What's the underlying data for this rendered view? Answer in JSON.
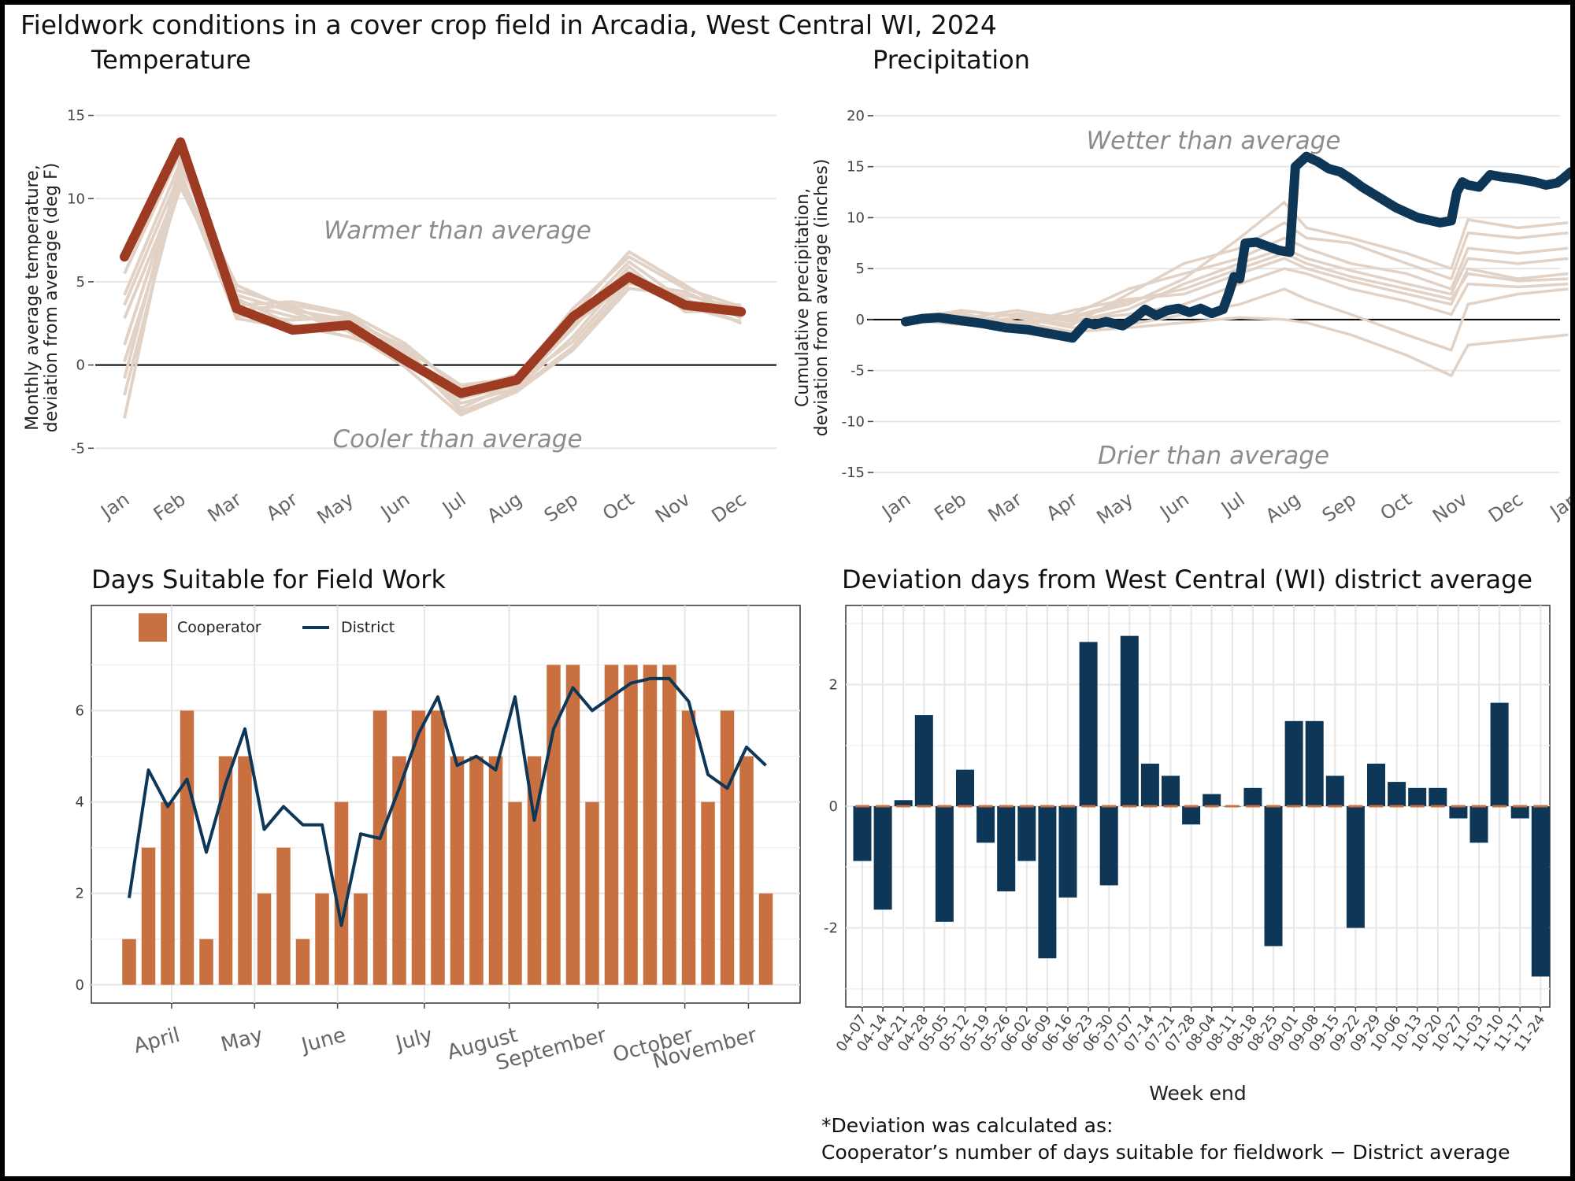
{
  "title": "Fieldwork conditions in a cover crop field in Arcadia, West Central WI, 2024",
  "colors": {
    "temp_line": "#9c3b22",
    "background_lines": "#e2d2c6",
    "precip_line": "#0e3757",
    "cooperator_bar": "#c87040",
    "district_line": "#0e3757",
    "deviation_bar": "#0e3757",
    "deviation_zero_mark": "#c87040"
  },
  "chart_data": [
    {
      "type": "line",
      "title": "Temperature",
      "ylabel": "Monthly average temperature,\ndeviation from average (deg F)",
      "xlabel": "",
      "categories": [
        "Jan",
        "Feb",
        "Mar",
        "Apr",
        "May",
        "Jun",
        "Jul",
        "Aug",
        "Sep",
        "Oct",
        "Nov",
        "Dec"
      ],
      "ylim": [
        -6.5,
        15.5
      ],
      "yticks": [
        -5,
        0,
        5,
        10,
        15
      ],
      "grid": true,
      "annotations": [
        "Warmer than average",
        "Cooler than average"
      ],
      "series": [
        {
          "values": [
            6.5,
            13.4,
            3.4,
            2.1,
            2.4,
            0.3,
            -1.7,
            -0.9,
            2.9,
            5.3,
            3.6,
            3.2
          ]
        }
      ],
      "background_series": [
        {
          "values": [
            5.5,
            12.8,
            3.8,
            2.9,
            2.6,
            0.4,
            -1.9,
            -1.1,
            2.4,
            5.0,
            3.9,
            3.0
          ]
        },
        {
          "values": [
            4.2,
            12.2,
            4.5,
            3.5,
            2.1,
            1.0,
            -1.2,
            -0.8,
            3.4,
            6.5,
            4.6,
            3.5
          ]
        },
        {
          "values": [
            3.6,
            11.6,
            3.0,
            2.7,
            2.9,
            0.9,
            -2.3,
            -1.4,
            1.7,
            5.6,
            3.5,
            2.6
          ]
        },
        {
          "values": [
            2.8,
            11.0,
            4.2,
            3.2,
            2.0,
            -0.1,
            -3.0,
            -1.6,
            0.9,
            4.6,
            4.2,
            3.4
          ]
        },
        {
          "values": [
            1.2,
            11.5,
            3.6,
            3.8,
            3.1,
            1.3,
            -1.5,
            -0.6,
            3.0,
            6.8,
            4.8,
            2.8
          ]
        },
        {
          "values": [
            0.2,
            10.7,
            4.0,
            2.4,
            1.7,
            0.6,
            -2.0,
            -1.2,
            2.2,
            5.9,
            3.2,
            3.3
          ]
        },
        {
          "values": [
            -0.8,
            12.0,
            4.8,
            3.3,
            2.7,
            1.1,
            -2.6,
            -1.0,
            1.4,
            5.2,
            4.0,
            2.5
          ]
        },
        {
          "values": [
            -1.8,
            11.2,
            2.8,
            2.2,
            2.3,
            0.2,
            -1.4,
            -0.7,
            2.7,
            6.2,
            3.8,
            3.6
          ]
        },
        {
          "values": [
            -3.2,
            12.5,
            3.3,
            3.6,
            3.0,
            0.7,
            -2.8,
            -1.5,
            1.1,
            4.9,
            4.4,
            2.9
          ]
        }
      ]
    },
    {
      "type": "line",
      "title": "Precipitation",
      "ylabel": "Cumulative precipitation,\ndeviation from average (inches)",
      "xlabel": "",
      "categories": [
        "Jan",
        "Feb",
        "Mar",
        "Apr",
        "May",
        "Jun",
        "Jul",
        "Aug",
        "Sep",
        "Oct",
        "Nov",
        "Dec",
        "Jan"
      ],
      "ylim": [
        -17,
        21
      ],
      "yticks": [
        -15,
        -10,
        -5,
        0,
        5,
        10,
        15,
        20
      ],
      "grid": true,
      "annotations": [
        "Wetter than average",
        "Drier than average"
      ],
      "series": [
        {
          "x": [
            0,
            0.3,
            0.6,
            1.0,
            1.4,
            1.8,
            2.2,
            2.6,
            3.0,
            3.25,
            3.4,
            3.6,
            3.9,
            4.1,
            4.3,
            4.5,
            4.7,
            4.9,
            5.1,
            5.3,
            5.5,
            5.7,
            5.8,
            5.9,
            6.0,
            6.1,
            6.3,
            6.5,
            6.7,
            6.9,
            7.0,
            7.2,
            7.4,
            7.6,
            7.8,
            8.0,
            8.2,
            8.5,
            8.8,
            9.2,
            9.6,
            9.8,
            9.9,
            10.0,
            10.1,
            10.3,
            10.5,
            10.7,
            11.0,
            11.3,
            11.5,
            11.7,
            11.8,
            11.95
          ],
          "y": [
            -0.2,
            0.1,
            0.2,
            -0.1,
            -0.4,
            -0.8,
            -1.0,
            -1.4,
            -1.8,
            -0.3,
            -0.5,
            -0.2,
            -0.6,
            0.1,
            1.0,
            0.4,
            0.9,
            1.1,
            0.7,
            1.1,
            0.6,
            1.0,
            2.5,
            4.2,
            4.0,
            7.5,
            7.6,
            7.2,
            6.8,
            6.6,
            15.0,
            16.0,
            15.5,
            14.8,
            14.5,
            13.8,
            13.0,
            12.0,
            11.0,
            10.0,
            9.5,
            9.7,
            12.5,
            13.5,
            13.2,
            13.0,
            14.2,
            14.0,
            13.8,
            13.5,
            13.2,
            13.4,
            13.8,
            14.5
          ]
        }
      ],
      "background_series": [
        {
          "x": [
            0,
            1,
            2,
            3,
            4,
            5,
            6,
            6.8,
            7.2,
            8,
            9,
            9.8,
            10.1,
            11,
            11.9
          ],
          "y": [
            0,
            0.5,
            -0.3,
            0.2,
            1.5,
            4.0,
            8.0,
            11.5,
            9.0,
            8.0,
            6.5,
            5.0,
            9.8,
            9.0,
            9.5
          ]
        },
        {
          "x": [
            0,
            1,
            2,
            3,
            4,
            5,
            6,
            6.8,
            7.2,
            8,
            9,
            9.8,
            10.1,
            11,
            11.9
          ],
          "y": [
            0,
            0.9,
            0.3,
            -0.5,
            2.5,
            5.5,
            7.0,
            9.5,
            8.0,
            7.5,
            5.5,
            4.0,
            8.5,
            8.0,
            8.5
          ]
        },
        {
          "x": [
            0,
            1,
            2,
            3,
            4,
            5,
            6,
            6.8,
            7.2,
            8,
            9,
            9.8,
            10.1,
            11,
            11.9
          ],
          "y": [
            0,
            0.2,
            -0.8,
            0.5,
            3.0,
            4.5,
            6.0,
            8.0,
            7.0,
            5.5,
            4.5,
            3.0,
            7.0,
            6.5,
            7.0
          ]
        },
        {
          "x": [
            0,
            1,
            2,
            3,
            4,
            5,
            6,
            6.8,
            7.2,
            8,
            9,
            9.8,
            10.1,
            11,
            11.9
          ],
          "y": [
            0,
            -0.3,
            0.6,
            -0.2,
            1.0,
            3.5,
            5.5,
            7.0,
            6.0,
            4.8,
            3.5,
            2.5,
            6.0,
            5.5,
            6.0
          ]
        },
        {
          "x": [
            0,
            1,
            2,
            3,
            4,
            5,
            6,
            6.8,
            7.2,
            8,
            9,
            9.8,
            10.1,
            11,
            11.9
          ],
          "y": [
            0,
            0.6,
            -0.5,
            0.9,
            2.0,
            2.5,
            4.5,
            6.0,
            5.0,
            3.8,
            2.5,
            1.5,
            5.0,
            4.0,
            4.5
          ]
        },
        {
          "x": [
            0,
            1,
            2,
            3,
            4,
            5,
            6,
            6.8,
            7.2,
            8,
            9,
            9.8,
            10.1,
            11,
            11.9
          ],
          "y": [
            0,
            0.1,
            0.9,
            0.0,
            0.5,
            1.5,
            3.5,
            5.0,
            4.5,
            3.0,
            1.8,
            0.5,
            3.5,
            3.2,
            3.5
          ]
        },
        {
          "x": [
            0,
            1,
            2,
            3,
            4,
            5,
            6,
            6.8,
            7.2,
            8,
            9,
            9.8,
            10.1,
            11,
            11.9
          ],
          "y": [
            0,
            -0.5,
            0.2,
            -0.8,
            -0.5,
            0.5,
            1.5,
            3.0,
            2.0,
            0.5,
            -1.5,
            -3.0,
            1.5,
            2.5,
            3.0
          ]
        },
        {
          "x": [
            0,
            1,
            2,
            3,
            4,
            5,
            6,
            6.8,
            7.2,
            8,
            9,
            9.8,
            10.1,
            11,
            11.9
          ],
          "y": [
            0,
            0.4,
            -0.2,
            -1.2,
            -0.8,
            -0.3,
            0.2,
            0.0,
            -0.3,
            -1.5,
            -3.5,
            -5.5,
            -2.5,
            -2.0,
            -1.5
          ]
        },
        {
          "x": [
            0,
            1,
            2,
            3,
            4,
            5,
            6,
            6.8,
            7.2,
            8,
            9,
            9.8,
            10.1,
            11,
            11.9
          ],
          "y": [
            0,
            0.8,
            0.4,
            0.3,
            1.8,
            3.0,
            5.0,
            6.5,
            5.5,
            4.2,
            3.0,
            2.0,
            4.5,
            3.8,
            4.0
          ]
        }
      ]
    },
    {
      "type": "bar",
      "title": "Days Suitable for Field Work",
      "xlabel": "",
      "ylabel": "",
      "month_labels": [
        "April",
        "May",
        "June",
        "July",
        "August",
        "September",
        "October",
        "November"
      ],
      "month_label_positions": [
        2.2,
        6.5,
        10.8,
        15.3,
        19.7,
        24.3,
        28.8,
        32.1
      ],
      "ylim": [
        -0.4,
        8.3
      ],
      "yticks": [
        0,
        2,
        4,
        6
      ],
      "grid": true,
      "legend": {
        "position": "top-left",
        "entries": [
          "Cooperator",
          "District"
        ]
      },
      "series": [
        {
          "name": "Cooperator",
          "type": "bar",
          "values": [
            1,
            3,
            4,
            6,
            1,
            5,
            5,
            2,
            3,
            1,
            2,
            4,
            2,
            6,
            5,
            6,
            6,
            5,
            5,
            5,
            4,
            5,
            7,
            7,
            4,
            7,
            7,
            7,
            7,
            6,
            4,
            6,
            5,
            2
          ]
        },
        {
          "name": "District",
          "type": "line",
          "values": [
            1.9,
            4.7,
            3.9,
            4.5,
            2.9,
            4.4,
            5.6,
            3.4,
            3.9,
            3.5,
            3.5,
            1.3,
            3.3,
            3.2,
            4.3,
            5.5,
            6.3,
            4.8,
            5.0,
            4.7,
            6.3,
            3.6,
            5.6,
            6.5,
            6.0,
            6.3,
            6.6,
            6.7,
            6.7,
            6.2,
            4.6,
            4.3,
            5.2,
            4.8
          ]
        }
      ]
    },
    {
      "type": "bar",
      "title": "Deviation days from West Central (WI) district average",
      "xlabel": "Week end",
      "ylabel": "",
      "categories": [
        "04-07",
        "04-14",
        "04-21",
        "04-28",
        "05-05",
        "05-12",
        "05-19",
        "05-26",
        "06-02",
        "06-09",
        "06-16",
        "06-23",
        "06-30",
        "07-07",
        "07-14",
        "07-21",
        "07-28",
        "08-04",
        "08-11",
        "08-18",
        "08-25",
        "09-01",
        "09-08",
        "09-15",
        "09-22",
        "09-29",
        "10-06",
        "10-13",
        "10-20",
        "10-27",
        "11-03",
        "11-10",
        "11-17",
        "11-24"
      ],
      "values": [
        -0.9,
        -1.7,
        0.1,
        1.5,
        -1.9,
        0.6,
        -0.6,
        -1.4,
        -0.9,
        -2.5,
        -1.5,
        2.7,
        -1.3,
        2.8,
        0.7,
        0.5,
        -0.3,
        0.2,
        0.0,
        0.3,
        -2.3,
        1.4,
        1.4,
        0.5,
        -2.0,
        0.7,
        0.4,
        0.3,
        0.3,
        -0.2,
        -0.6,
        1.7,
        -0.2,
        -2.8
      ],
      "ylim": [
        -3.3,
        3.3
      ],
      "yticks": [
        -2,
        0,
        2
      ],
      "grid": true,
      "note_lines": [
        "*Deviation was calculated as:",
        "Cooperator’s number of days suitable for fieldwork − District average"
      ]
    }
  ]
}
